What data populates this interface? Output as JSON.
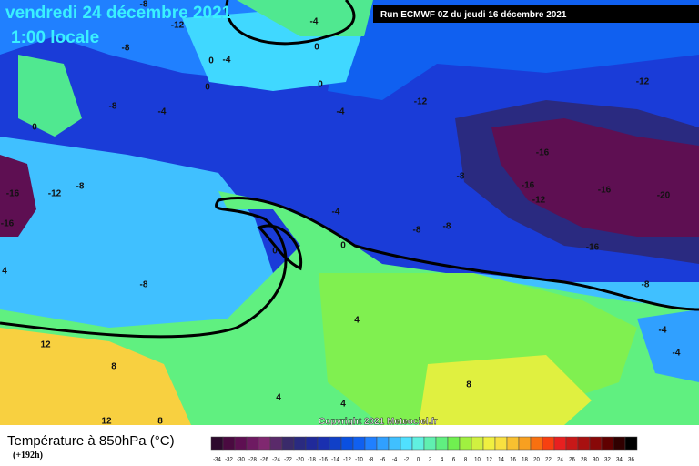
{
  "header": {
    "date": "vendredi 24 décembre 2021",
    "time": "1:00 locale",
    "run": "Run ECMWF 0Z du jeudi 16 décembre 2021"
  },
  "map": {
    "copyright": "Copyright 2021 Meteociel.fr",
    "contour_labels": [
      -8,
      -12,
      -8,
      -4,
      0,
      0,
      -4,
      0,
      0,
      -8,
      -4,
      0,
      -4,
      -12,
      -12,
      -8,
      -12,
      -16,
      -16,
      -16,
      -8,
      -16,
      -12,
      -16,
      -20,
      -4,
      -8,
      -8,
      -16,
      0,
      0,
      4,
      -8,
      -8,
      4,
      -4,
      -4,
      12,
      8,
      8,
      4,
      4,
      12,
      8
    ]
  },
  "legend": {
    "title": "Température à 850hPa (°C)",
    "lead": "(+192h)",
    "ticks": [
      -34,
      -32,
      -30,
      -28,
      -26,
      -24,
      -22,
      -20,
      -18,
      -16,
      -14,
      -12,
      -10,
      -8,
      -6,
      -4,
      -2,
      0,
      2,
      4,
      6,
      8,
      10,
      12,
      14,
      16,
      18,
      20,
      22,
      24,
      26,
      28,
      30,
      32,
      34,
      36
    ],
    "colors": [
      "#2d0a2d",
      "#4a0a40",
      "#5e0f52",
      "#6e1a62",
      "#802870",
      "#5a2a6a",
      "#3a2a6a",
      "#2a2a80",
      "#202a9a",
      "#1a30b0",
      "#1040c8",
      "#0a50e0",
      "#1060f0",
      "#2080ff",
      "#30a0ff",
      "#40c0ff",
      "#50e0ff",
      "#60f0e0",
      "#60f0b0",
      "#60f080",
      "#70f050",
      "#a0f040",
      "#d0f040",
      "#f0f040",
      "#f8e040",
      "#f8c030",
      "#f8a020",
      "#f87010",
      "#f84010",
      "#e82020",
      "#c81818",
      "#a81010",
      "#880808",
      "#600000",
      "#300000",
      "#000000"
    ]
  }
}
